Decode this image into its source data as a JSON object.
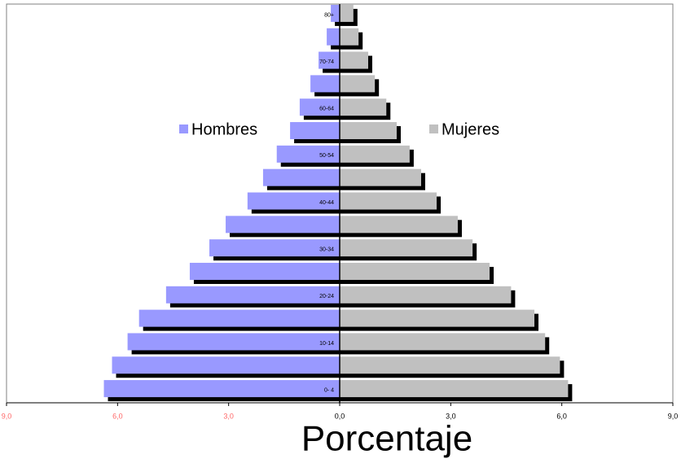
{
  "chart_data": {
    "type": "pyramid",
    "x_label": "Porcentaje",
    "categories": [
      "0- 4",
      null,
      "10-14",
      null,
      "20-24",
      null,
      "30-34",
      null,
      "40-44",
      null,
      "50-54",
      null,
      "60-64",
      null,
      "70-74",
      null,
      "80+"
    ],
    "series": [
      {
        "name": "Hombres",
        "color": "#9999ff",
        "values": [
          -6.37,
          -6.15,
          -5.73,
          -5.42,
          -4.69,
          -4.05,
          -3.52,
          -3.08,
          -2.49,
          -2.07,
          -1.7,
          -1.34,
          -1.08,
          -0.79,
          -0.57,
          -0.35,
          -0.24
        ]
      },
      {
        "name": "Mujeres",
        "color": "#c0c0c0",
        "values": [
          6.17,
          5.95,
          5.55,
          5.26,
          4.63,
          4.05,
          3.59,
          3.19,
          2.62,
          2.2,
          1.89,
          1.54,
          1.26,
          0.95,
          0.77,
          0.51,
          0.37
        ]
      }
    ],
    "xlim": [
      -9,
      9
    ],
    "xticks": [
      {
        "value": -9,
        "label": "9,0"
      },
      {
        "value": -6,
        "label": "6,0"
      },
      {
        "value": -3,
        "label": "3,0"
      },
      {
        "value": 0,
        "label": "0,0"
      },
      {
        "value": 3,
        "label": "3,0"
      },
      {
        "value": 6,
        "label": "6,0"
      },
      {
        "value": 9,
        "label": "9,0"
      }
    ],
    "negative_tick_color": "#ff6666"
  }
}
